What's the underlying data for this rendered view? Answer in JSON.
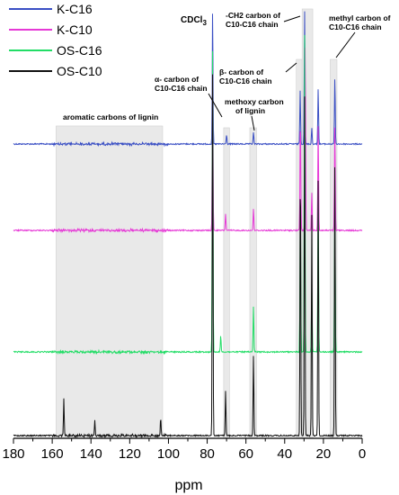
{
  "chart_data": {
    "type": "line",
    "xlabel": "ppm",
    "xlim": [
      180,
      0
    ],
    "x_reversed": true,
    "xticks": [
      "180",
      "160",
      "140",
      "120",
      "100",
      "80",
      "60",
      "40",
      "20",
      "0"
    ],
    "grid": false,
    "legend_position": "top-left",
    "series": [
      {
        "name": "K-C16",
        "color": "#3a4fc4",
        "peaks": [
          {
            "ppm": 77.2,
            "height": 1.0
          },
          {
            "ppm": 70.0,
            "height": 0.07
          },
          {
            "ppm": 56.1,
            "height": 0.09
          },
          {
            "ppm": 32.0,
            "height": 0.4
          },
          {
            "ppm": 29.7,
            "height": 1.0
          },
          {
            "ppm": 26.0,
            "height": 0.12
          },
          {
            "ppm": 22.7,
            "height": 0.42
          },
          {
            "ppm": 14.1,
            "height": 0.5
          }
        ]
      },
      {
        "name": "K-C10",
        "color": "#e639d6",
        "peaks": [
          {
            "ppm": 77.2,
            "height": 0.85
          },
          {
            "ppm": 70.5,
            "height": 0.08
          },
          {
            "ppm": 56.1,
            "height": 0.1
          },
          {
            "ppm": 31.9,
            "height": 0.55
          },
          {
            "ppm": 29.4,
            "height": 0.9
          },
          {
            "ppm": 26.0,
            "height": 0.18
          },
          {
            "ppm": 22.7,
            "height": 0.5
          },
          {
            "ppm": 14.1,
            "height": 0.5
          }
        ]
      },
      {
        "name": "OS-C16",
        "color": "#22dd66",
        "peaks": [
          {
            "ppm": 77.2,
            "height": 0.95
          },
          {
            "ppm": 73.0,
            "height": 0.05
          },
          {
            "ppm": 56.1,
            "height": 0.14
          },
          {
            "ppm": 31.9,
            "height": 0.45
          },
          {
            "ppm": 29.7,
            "height": 0.98
          },
          {
            "ppm": 26.0,
            "height": 0.2
          },
          {
            "ppm": 22.7,
            "height": 0.5
          },
          {
            "ppm": 14.1,
            "height": 0.45
          }
        ]
      },
      {
        "name": "OS-C10",
        "color": "#111111",
        "peaks": [
          {
            "ppm": 154.0,
            "height": 0.1
          },
          {
            "ppm": 138.0,
            "height": 0.04
          },
          {
            "ppm": 104.0,
            "height": 0.05
          },
          {
            "ppm": 77.2,
            "height": 1.0
          },
          {
            "ppm": 70.5,
            "height": 0.12
          },
          {
            "ppm": 56.1,
            "height": 0.22
          },
          {
            "ppm": 31.9,
            "height": 0.75
          },
          {
            "ppm": 29.7,
            "height": 0.92
          },
          {
            "ppm": 26.0,
            "height": 0.6
          },
          {
            "ppm": 22.7,
            "height": 0.7
          },
          {
            "ppm": 14.1,
            "height": 0.75
          }
        ]
      }
    ],
    "regions": [
      {
        "label": "aromatic carbons of lignin",
        "from": 158,
        "to": 103
      },
      {
        "label": "α- carbon of C10-C16 chain",
        "from": 71.5,
        "to": 68.5
      },
      {
        "label": "methoxy carbon of lignin",
        "from": 58,
        "to": 54.5
      },
      {
        "label": "β- carbon of C10-C16 chain",
        "from": 34,
        "to": 31
      },
      {
        "label": "-CH2 carbon of C10-C16 chain",
        "from": 31,
        "to": 25.5
      },
      {
        "label": "methyl carbon of C10-C16 chain",
        "from": 16.5,
        "to": 13
      }
    ],
    "annotations": [
      {
        "text": "CDCl",
        "sub": "3"
      }
    ]
  },
  "labels": {
    "cdcl3": "CDCl",
    "cdcl3_sub": "3",
    "aromatic": "aromatic carbons of lignin",
    "alpha_1": "α- carbon of",
    "alpha_2": "C10-C16 chain",
    "methoxy_1": "methoxy carbon",
    "methoxy_2": "of lignin",
    "beta_1": "β- carbon of",
    "beta_2": "C10-C16 chain",
    "ch2_1": "-CH2 carbon of",
    "ch2_2": "C10-C16 chain",
    "methyl_1": "methyl carbon of",
    "methyl_2": "C10-C16 chain"
  }
}
